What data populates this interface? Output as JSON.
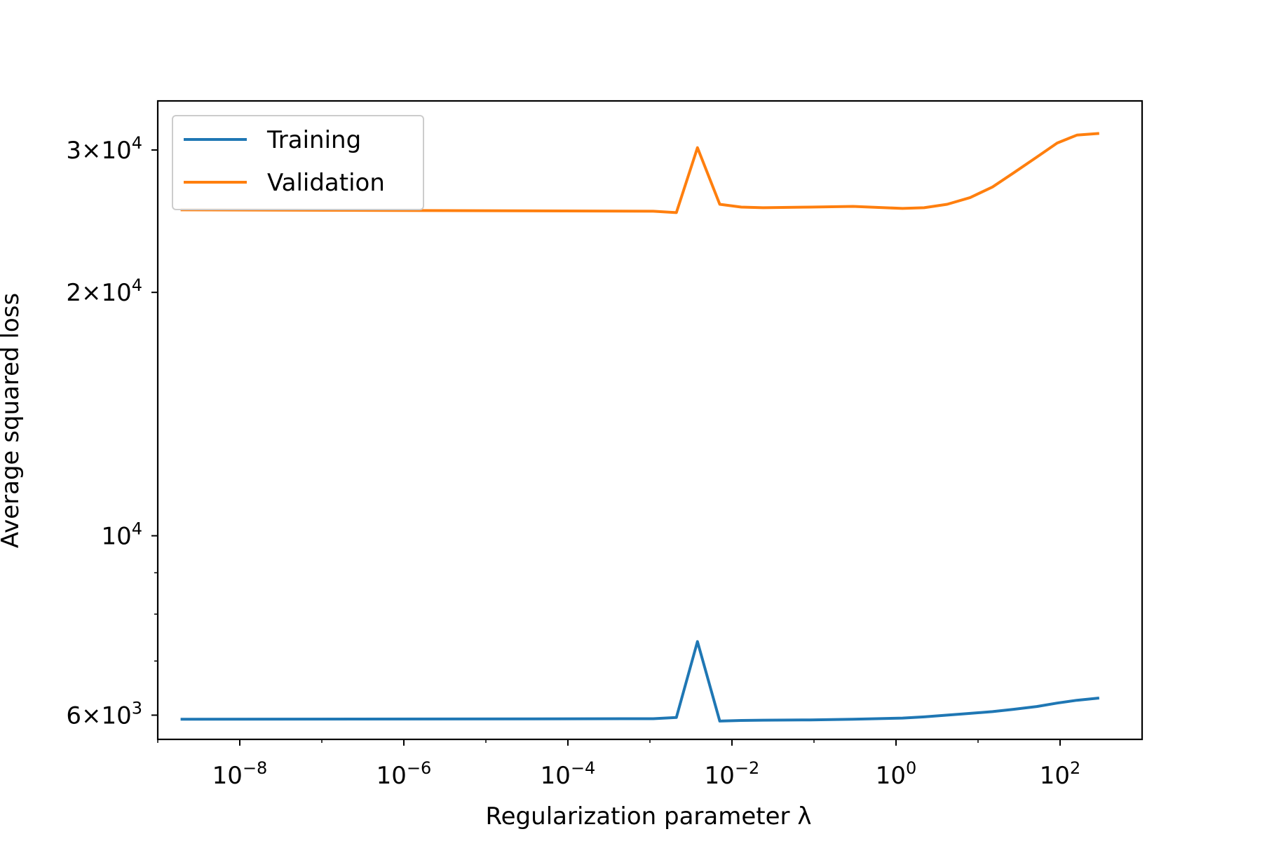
{
  "chart_data": {
    "type": "line",
    "xlabel": "Regularization parameter λ",
    "ylabel": "Average squared loss",
    "xscale": "log",
    "yscale": "log",
    "xlim": [
      1e-09,
      1000
    ],
    "ylim": [
      5600,
      34500
    ],
    "grid": false,
    "legend_position": "top-left",
    "x_ticks": [
      {
        "base": "10",
        "exp": "−8"
      },
      {
        "base": "10",
        "exp": "−6"
      },
      {
        "base": "10",
        "exp": "−4"
      },
      {
        "base": "10",
        "exp": "−2"
      },
      {
        "base": "10",
        "exp": "0"
      },
      {
        "base": "10",
        "exp": "2"
      }
    ],
    "y_ticks": [
      {
        "mantissa": "6",
        "base": "10",
        "exp": "3"
      },
      {
        "mantissa": "",
        "base": "10",
        "exp": "4"
      },
      {
        "mantissa": "2",
        "base": "10",
        "exp": "4"
      },
      {
        "mantissa": "3",
        "base": "10",
        "exp": "4"
      }
    ],
    "x": [
      1.9e-09,
      0.0011,
      0.0021,
      0.0038,
      0.0071,
      0.013,
      0.024,
      0.09,
      0.3,
      1.2,
      2.2,
      4.2,
      8,
      15,
      27,
      52,
      92,
      160,
      300
    ],
    "series": [
      {
        "name": "Training",
        "color": "#1f77b4",
        "values": [
          5930,
          5940,
          5960,
          7400,
          5900,
          5910,
          5915,
          5920,
          5930,
          5950,
          5970,
          6000,
          6030,
          6060,
          6100,
          6150,
          6210,
          6260,
          6300
        ]
      },
      {
        "name": "Validation",
        "color": "#ff7f0e",
        "values": [
          25300,
          25200,
          25100,
          30200,
          25700,
          25500,
          25450,
          25500,
          25550,
          25400,
          25450,
          25700,
          26200,
          27000,
          28100,
          29400,
          30600,
          31300,
          31450
        ]
      }
    ]
  }
}
